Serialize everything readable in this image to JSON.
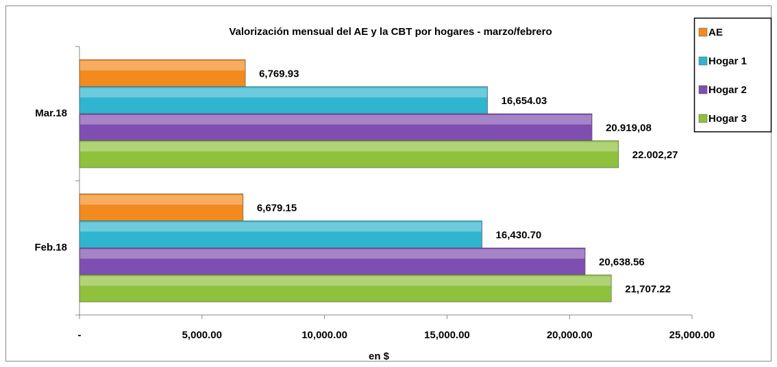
{
  "chart_data": {
    "type": "hbar",
    "title": "Valorización mensual del AE y la CBT por hogares - marzo/febrero",
    "xlabel": "en $",
    "categories": [
      "Mar.18",
      "Feb.18"
    ],
    "series": [
      {
        "name": "AE",
        "color": "#f28a1e",
        "values": [
          6769.93,
          6679.15
        ],
        "value_labels": [
          "6,769.93",
          "6,679.15"
        ]
      },
      {
        "name": "Hogar 1",
        "color": "#2fb5cf",
        "values": [
          16654.03,
          16430.7
        ],
        "value_labels": [
          "16,654.03",
          "16,430.70"
        ]
      },
      {
        "name": "Hogar 2",
        "color": "#7e4fb0",
        "values": [
          20919.08,
          20638.56
        ],
        "value_labels": [
          "20.919,08",
          "20,638.56"
        ]
      },
      {
        "name": "Hogar 3",
        "color": "#8fc13c",
        "values": [
          22002.27,
          21707.22
        ],
        "value_labels": [
          "22.002,27",
          "21,707.22"
        ]
      }
    ],
    "xlim": [
      0,
      25000
    ],
    "xticks": [
      {
        "value": 0,
        "label": "-"
      },
      {
        "value": 5000,
        "label": "5,000.00"
      },
      {
        "value": 10000,
        "label": "10,000.00"
      },
      {
        "value": 15000,
        "label": "15,000.00"
      },
      {
        "value": 20000,
        "label": "20,000.00"
      },
      {
        "value": 25000,
        "label": "25,000.00"
      }
    ],
    "legend": "right"
  }
}
